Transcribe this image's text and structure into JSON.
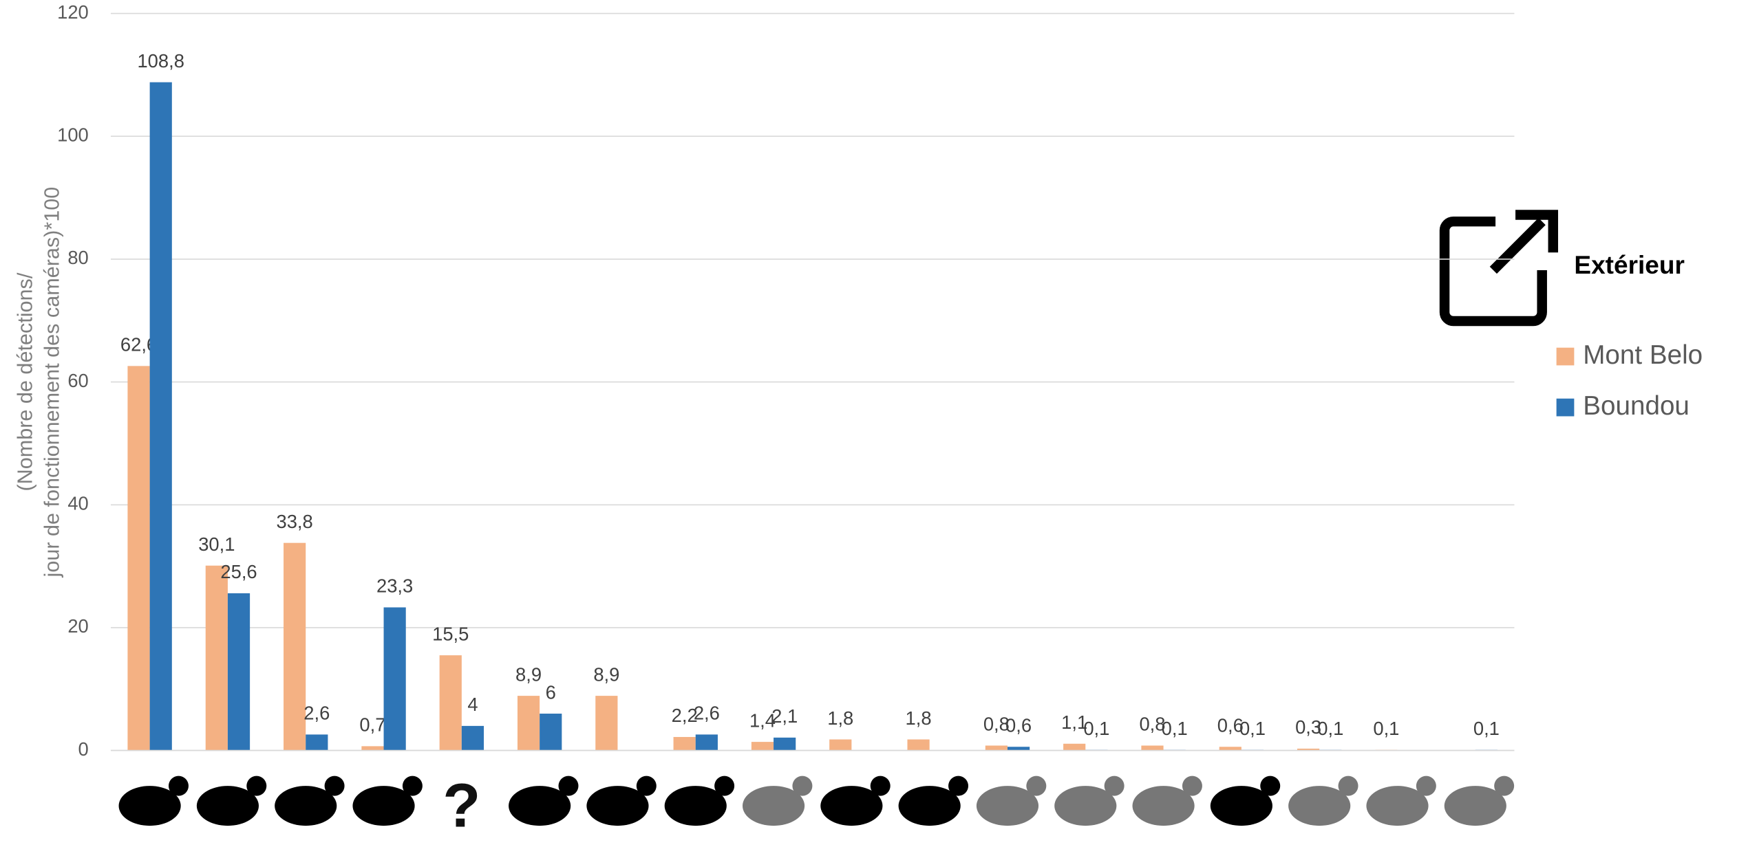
{
  "chart_data": {
    "type": "bar",
    "ylabel": [
      "(Nombre de détections/",
      "jour de fonctionnement des caméras)*100"
    ],
    "categories": [
      null,
      null,
      null,
      null,
      "?",
      null,
      null,
      null,
      null,
      null,
      null,
      null,
      null,
      null,
      null,
      null,
      null,
      null
    ],
    "legend_title": "Extérieur",
    "legend": "right",
    "grid": true,
    "ylim": [
      0,
      120
    ],
    "yticks": [
      0,
      20,
      40,
      60,
      80,
      100,
      120
    ],
    "series": [
      {
        "name": "Mont Belo",
        "color": "#f4b183",
        "values": [
          62.6,
          30.1,
          33.8,
          0.7,
          15.5,
          8.9,
          8.9,
          2.2,
          1.4,
          1.8,
          1.8,
          0.8,
          1.1,
          0.8,
          0.6,
          0.3,
          0.1,
          null
        ],
        "value_labels": [
          "62,6",
          "30,1",
          "33,8",
          "0,7",
          "15,5",
          "8,9",
          "8,9",
          "2,2",
          "1,4",
          "1,8",
          "1,8",
          "0,8",
          "1,1",
          "0,8",
          "0,6",
          "0,3",
          "0,1",
          null
        ]
      },
      {
        "name": "Boundou",
        "color": "#2e75b6",
        "values": [
          108.8,
          25.6,
          2.6,
          23.3,
          4,
          6,
          null,
          2.6,
          2.1,
          null,
          null,
          0.6,
          0.1,
          0.1,
          0.1,
          0.1,
          null,
          0.1
        ],
        "value_labels": [
          "108,8",
          "25,6",
          "2,6",
          "23,3",
          "4",
          "6",
          null,
          "2,6",
          "2,1",
          null,
          null,
          "0,6",
          "0,1",
          "0,1",
          "0,1",
          "0,1",
          null,
          "0,1"
        ]
      }
    ]
  }
}
